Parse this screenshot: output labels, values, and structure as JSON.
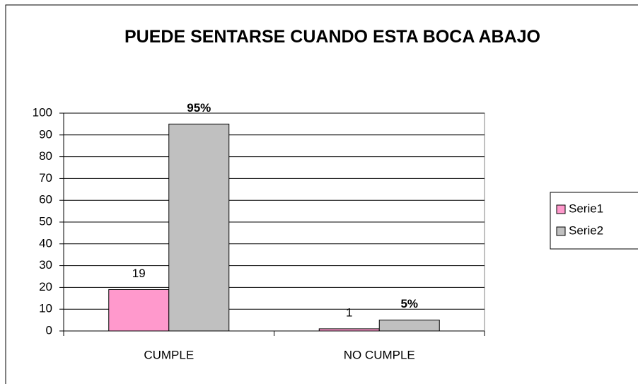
{
  "chart_data": {
    "type": "bar",
    "title": "PUEDE SENTARSE CUANDO ESTA BOCA ABAJO",
    "categories": [
      "CUMPLE",
      "NO CUMPLE"
    ],
    "series": [
      {
        "name": "Serie1",
        "color": "#ff99cc",
        "values": [
          19,
          1
        ]
      },
      {
        "name": "Serie2",
        "color": "#c0c0c0",
        "values": [
          95,
          5
        ],
        "value_labels": [
          "95%",
          "5%"
        ]
      }
    ],
    "ylim": [
      0,
      100
    ],
    "yticks": [
      0,
      10,
      20,
      30,
      40,
      50,
      60,
      70,
      80,
      90,
      100
    ],
    "grid": true,
    "legend": "right"
  }
}
